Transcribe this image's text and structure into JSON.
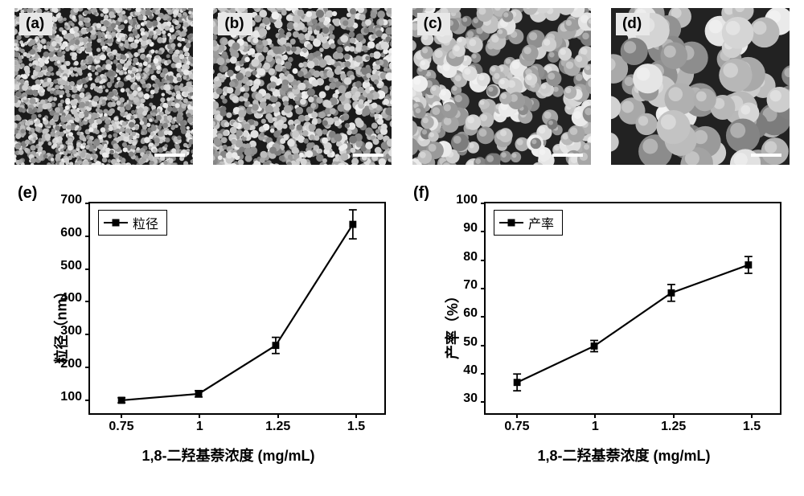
{
  "sem_panels": [
    {
      "label": "(a)",
      "grain_size": 6,
      "density": 2200,
      "jitter": 2
    },
    {
      "label": "(b)",
      "grain_size": 8,
      "density": 1300,
      "jitter": 3
    },
    {
      "label": "(c)",
      "grain_size": 18,
      "density": 280,
      "jitter": 4
    },
    {
      "label": "(d)",
      "grain_size": 34,
      "density": 70,
      "jitter": 5
    }
  ],
  "charts": [
    {
      "label": "(e)",
      "type": "line",
      "legend_label": "粒径",
      "y_axis_label": "粒径（nm）",
      "x_axis_label": "1,8-二羟基萘浓度 (mg/mL)",
      "ylim": [
        50,
        700
      ],
      "ytick_step": 100,
      "yticks": [
        100,
        200,
        300,
        400,
        500,
        600,
        700
      ],
      "xticks": [
        0.75,
        1,
        1.25,
        1.5
      ],
      "xlim": [
        0.65,
        1.6
      ],
      "data": {
        "x": [
          0.75,
          1,
          1.25,
          1.5
        ],
        "y": [
          90,
          110,
          260,
          635
        ],
        "yerr": [
          8,
          10,
          25,
          45
        ]
      },
      "marker": "square",
      "marker_size": 9,
      "line_color": "#000000",
      "line_width": 2.2,
      "background_color": "#ffffff"
    },
    {
      "label": "(f)",
      "type": "line",
      "legend_label": "产率",
      "y_axis_label": "产率（%）",
      "x_axis_label": "1,8-二羟基萘浓度 (mg/mL)",
      "ylim": [
        25,
        100
      ],
      "ytick_step": 10,
      "yticks": [
        30,
        40,
        50,
        60,
        70,
        80,
        90,
        100
      ],
      "xticks": [
        0.75,
        1,
        1.25,
        1.5
      ],
      "xlim": [
        0.65,
        1.6
      ],
      "data": {
        "x": [
          0.75,
          1,
          1.25,
          1.5
        ],
        "y": [
          36,
          49,
          68,
          78
        ],
        "yerr": [
          3,
          2,
          3,
          3
        ]
      },
      "marker": "square",
      "marker_size": 9,
      "line_color": "#000000",
      "line_width": 2.2,
      "background_color": "#ffffff"
    }
  ]
}
